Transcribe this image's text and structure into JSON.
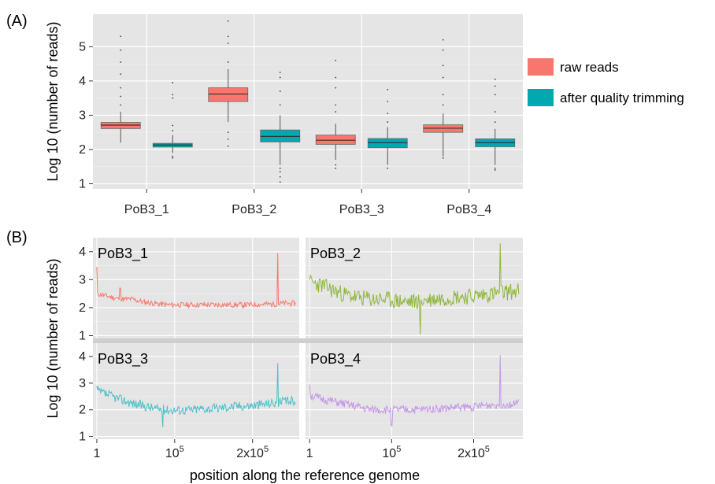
{
  "figure": {
    "panel_a_label": "(A)",
    "panel_b_label": "(B)"
  },
  "chart_data": [
    {
      "type": "box",
      "panel": "(A)",
      "ylabel": "Log 10 (number of reads)",
      "xlabel": "",
      "ylim": [
        0.85,
        5.95
      ],
      "yticks": [
        1,
        2,
        3,
        4,
        5
      ],
      "grid": true,
      "legend_position": "right",
      "categories": [
        "PoB3_1",
        "PoB3_2",
        "PoB3_3",
        "PoB3_4"
      ],
      "series": [
        {
          "name": "raw reads",
          "color": "#f8766d",
          "boxes": [
            {
              "min": 2.2,
              "q1": 2.61,
              "median": 2.71,
              "q3": 2.79,
              "max": 3.1,
              "outliers": [
                3.3,
                3.55,
                3.8,
                4.2,
                4.55,
                4.9,
                5.3
              ]
            },
            {
              "min": 2.8,
              "q1": 3.4,
              "median": 3.62,
              "q3": 3.8,
              "max": 4.35,
              "outliers": [
                2.5,
                2.3,
                2.1,
                4.55,
                5.1,
                5.3,
                5.75
              ]
            },
            {
              "min": 1.7,
              "q1": 2.15,
              "median": 2.27,
              "q3": 2.42,
              "max": 2.75,
              "outliers": [
                1.55,
                1.45,
                3.1,
                3.3,
                3.8,
                4.1,
                4.6
              ]
            },
            {
              "min": 1.8,
              "q1": 2.5,
              "median": 2.62,
              "q3": 2.72,
              "max": 3.05,
              "outliers": [
                1.75,
                3.3,
                3.6,
                4.1,
                4.45,
                4.9,
                5.2
              ]
            }
          ]
        },
        {
          "name": "after quality trimming",
          "color": "#00a9b0",
          "boxes": [
            {
              "min": 1.9,
              "q1": 2.07,
              "median": 2.13,
              "q3": 2.18,
              "max": 2.42,
              "outliers": [
                1.75,
                1.8,
                2.55,
                2.7,
                3.5,
                3.6,
                3.95
              ]
            },
            {
              "min": 1.55,
              "q1": 2.22,
              "median": 2.38,
              "q3": 2.57,
              "max": 3.0,
              "outliers": [
                1.45,
                1.35,
                1.2,
                1.05,
                3.3,
                3.7,
                4.1,
                4.25
              ]
            },
            {
              "min": 1.55,
              "q1": 2.05,
              "median": 2.2,
              "q3": 2.32,
              "max": 2.65,
              "outliers": [
                1.45,
                2.8,
                3.05,
                3.4,
                3.75
              ]
            },
            {
              "min": 1.55,
              "q1": 2.08,
              "median": 2.2,
              "q3": 2.31,
              "max": 2.6,
              "outliers": [
                1.45,
                1.4,
                2.8,
                3.1,
                3.6,
                3.85,
                4.05
              ]
            }
          ]
        }
      ]
    },
    {
      "type": "line",
      "panel": "(B)",
      "ylabel": "Log 10 (number of reads)",
      "xlabel": "position along the reference genome",
      "ylim": [
        0.9,
        4.5
      ],
      "yticks": [
        1,
        2,
        3,
        4
      ],
      "xlim": [
        -5000,
        260000
      ],
      "xticks": [
        1,
        100000,
        200000
      ],
      "xtick_base": [
        "1",
        "10",
        "2x10"
      ],
      "xtick_exp": [
        "",
        "5",
        "5"
      ],
      "grid": true,
      "facets": [
        {
          "label": "PoB3_1",
          "color": "#f8766d",
          "baseline": [
            2.5,
            2.4,
            2.3,
            2.3,
            2.2,
            2.15,
            2.1,
            2.1,
            2.1,
            2.1,
            2.1,
            2.1,
            2.1,
            2.1,
            2.12,
            2.12,
            2.15,
            2.15
          ],
          "spikes": [
            [
              1,
              3.45
            ],
            [
              30000,
              2.7
            ],
            [
              232000,
              3.95
            ]
          ],
          "noise": 0.1,
          "seed": 11
        },
        {
          "label": "PoB3_2",
          "color": "#8fb63b",
          "baseline": [
            2.9,
            2.8,
            2.6,
            2.45,
            2.35,
            2.3,
            2.3,
            2.25,
            2.2,
            2.25,
            2.3,
            2.35,
            2.4,
            2.4,
            2.45,
            2.5,
            2.55,
            2.6
          ],
          "spikes": [
            [
              1,
              3.0
            ],
            [
              135000,
              1.05
            ],
            [
              232000,
              4.3
            ]
          ],
          "noise": 0.3,
          "seed": 23
        },
        {
          "label": "PoB3_3",
          "color": "#4cc0c8",
          "baseline": [
            2.7,
            2.55,
            2.4,
            2.25,
            2.15,
            2.05,
            2.0,
            2.0,
            2.0,
            2.05,
            2.05,
            2.1,
            2.15,
            2.15,
            2.2,
            2.25,
            2.3,
            2.35
          ],
          "spikes": [
            [
              1,
              2.9
            ],
            [
              85000,
              1.35
            ],
            [
              232000,
              3.75
            ]
          ],
          "noise": 0.18,
          "seed": 37
        },
        {
          "label": "PoB3_4",
          "color": "#c497e8",
          "baseline": [
            2.55,
            2.4,
            2.3,
            2.2,
            2.1,
            2.0,
            2.0,
            2.0,
            2.0,
            2.0,
            2.05,
            2.05,
            2.1,
            2.1,
            2.15,
            2.2,
            2.2,
            2.25
          ],
          "spikes": [
            [
              1,
              2.95
            ],
            [
              100000,
              1.4
            ],
            [
              232000,
              4.05
            ]
          ],
          "noise": 0.16,
          "seed": 51
        }
      ]
    }
  ]
}
